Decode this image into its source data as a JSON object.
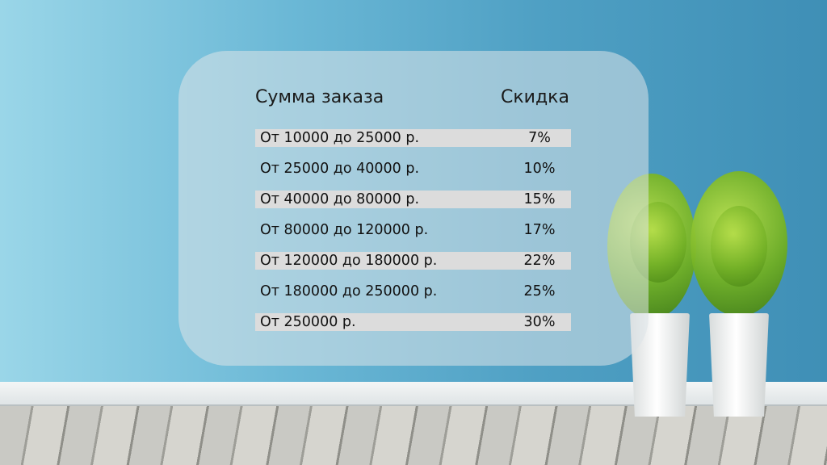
{
  "table": {
    "headers": {
      "amount": "Сумма заказа",
      "discount": "Скидка"
    },
    "rows": [
      {
        "amount": "От 10000 до 25000 р.",
        "discount": "7%"
      },
      {
        "amount": "От 25000 до 40000 р.",
        "discount": "10%"
      },
      {
        "amount": "От 40000 до 80000 р.",
        "discount": "15%"
      },
      {
        "amount": "От 80000 до 120000 р.",
        "discount": "17%"
      },
      {
        "amount": "От 120000 до 180000 р.",
        "discount": "22%"
      },
      {
        "amount": "От 180000 до 250000 р.",
        "discount": "25%"
      },
      {
        "amount": "От 250000 р.",
        "discount": "30%"
      }
    ],
    "highlight_color": "#dcdcdc"
  }
}
